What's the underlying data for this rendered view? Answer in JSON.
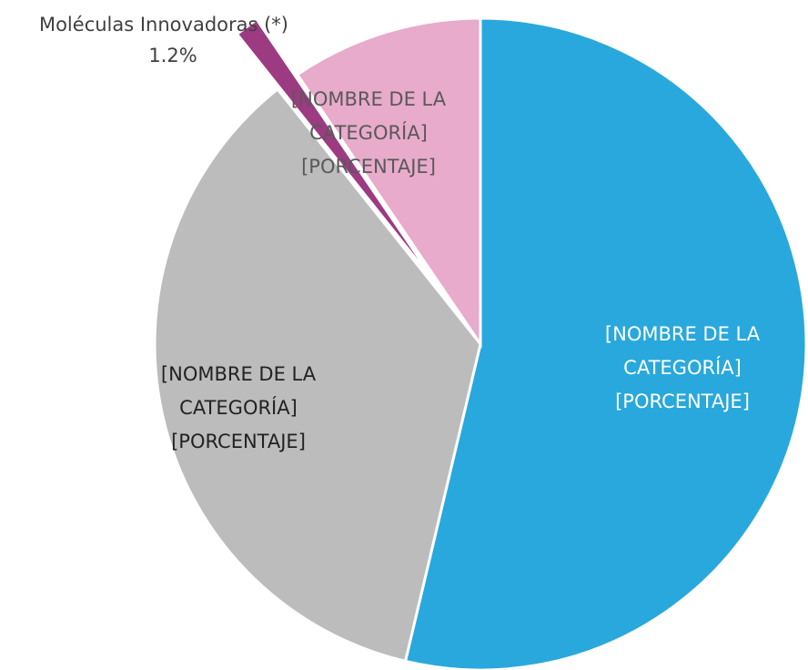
{
  "chart_data": {
    "type": "pie",
    "categories": [
      "[NOMBRE DE LA CATEGORÍA]",
      "[NOMBRE DE LA CATEGORÍA]",
      "Moléculas Innovadoras (*)",
      "[NOMBRE DE LA CATEGORÍA]"
    ],
    "values": [
      53.7,
      35.6,
      1.2,
      9.5
    ],
    "value_labels": [
      "[PORCENTAJE]",
      "[PORCENTAJE]",
      "1.2%",
      "[PORCENTAJE]"
    ],
    "colors": [
      "#29a8dd",
      "#bcbcbc",
      "#9c3a82",
      "#e8abcb"
    ]
  }
}
